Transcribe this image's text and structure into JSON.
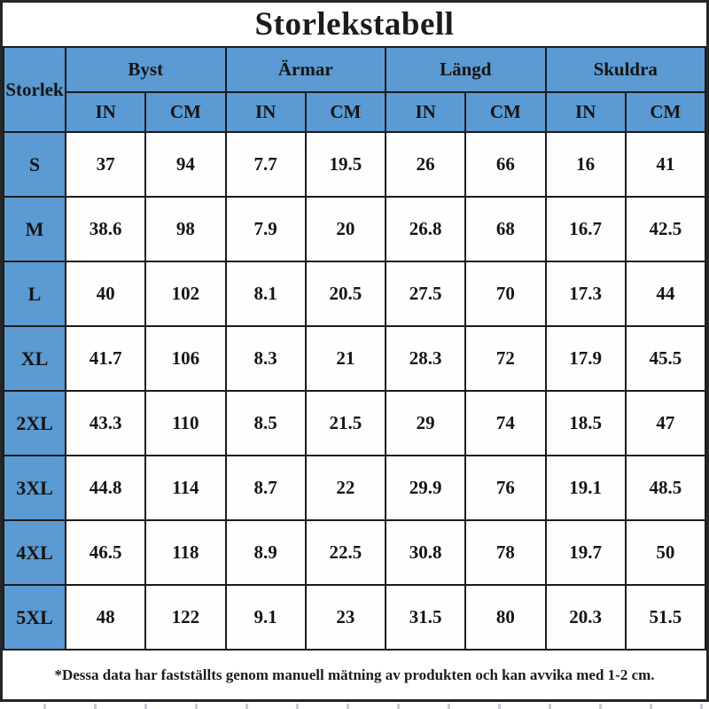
{
  "title": "Storlekstabell",
  "footnote": "*Dessa data har fastställts genom manuell mätning av produkten och kan avvika med 1-2 cm.",
  "colors": {
    "header_blue": "#5b9ad2",
    "border": "#1c1c1c",
    "text": "#151515",
    "background": "#ffffff"
  },
  "table": {
    "corner_label": "Storlek",
    "groups": [
      {
        "label": "Byst"
      },
      {
        "label": "Ärmar"
      },
      {
        "label": "Längd"
      },
      {
        "label": "Skuldra"
      }
    ],
    "unit_labels": [
      "IN",
      "CM"
    ],
    "rows": [
      {
        "size": "S",
        "values": [
          "37",
          "94",
          "7.7",
          "19.5",
          "26",
          "66",
          "16",
          "41"
        ]
      },
      {
        "size": "M",
        "values": [
          "38.6",
          "98",
          "7.9",
          "20",
          "26.8",
          "68",
          "16.7",
          "42.5"
        ]
      },
      {
        "size": "L",
        "values": [
          "40",
          "102",
          "8.1",
          "20.5",
          "27.5",
          "70",
          "17.3",
          "44"
        ]
      },
      {
        "size": "XL",
        "values": [
          "41.7",
          "106",
          "8.3",
          "21",
          "28.3",
          "72",
          "17.9",
          "45.5"
        ]
      },
      {
        "size": "2XL",
        "values": [
          "43.3",
          "110",
          "8.5",
          "21.5",
          "29",
          "74",
          "18.5",
          "47"
        ]
      },
      {
        "size": "3XL",
        "values": [
          "44.8",
          "114",
          "8.7",
          "22",
          "29.9",
          "76",
          "19.1",
          "48.5"
        ]
      },
      {
        "size": "4XL",
        "values": [
          "46.5",
          "118",
          "8.9",
          "22.5",
          "30.8",
          "78",
          "19.7",
          "50"
        ]
      },
      {
        "size": "5XL",
        "values": [
          "48",
          "122",
          "9.1",
          "23",
          "31.5",
          "80",
          "20.3",
          "51.5"
        ]
      }
    ]
  },
  "chart_data": {
    "type": "table",
    "title": "Storlekstabell",
    "column_groups": [
      "Byst",
      "Ärmar",
      "Längd",
      "Skuldra"
    ],
    "columns": [
      "Storlek",
      "Byst IN",
      "Byst CM",
      "Ärmar IN",
      "Ärmar CM",
      "Längd IN",
      "Längd CM",
      "Skuldra IN",
      "Skuldra CM"
    ],
    "rows": [
      [
        "S",
        37,
        94,
        7.7,
        19.5,
        26,
        66,
        16,
        41
      ],
      [
        "M",
        38.6,
        98,
        7.9,
        20,
        26.8,
        68,
        16.7,
        42.5
      ],
      [
        "L",
        40,
        102,
        8.1,
        20.5,
        27.5,
        70,
        17.3,
        44
      ],
      [
        "XL",
        41.7,
        106,
        8.3,
        21,
        28.3,
        72,
        17.9,
        45.5
      ],
      [
        "2XL",
        43.3,
        110,
        8.5,
        21.5,
        29,
        74,
        18.5,
        47
      ],
      [
        "3XL",
        44.8,
        114,
        8.7,
        22,
        29.9,
        76,
        19.1,
        48.5
      ],
      [
        "4XL",
        46.5,
        118,
        8.9,
        22.5,
        30.8,
        78,
        19.7,
        50
      ],
      [
        "5XL",
        48,
        122,
        9.1,
        23,
        31.5,
        80,
        20.3,
        51.5
      ]
    ],
    "note": "*Dessa data har fastställts genom manuell mätning av produkten och kan avvika med 1-2 cm."
  }
}
